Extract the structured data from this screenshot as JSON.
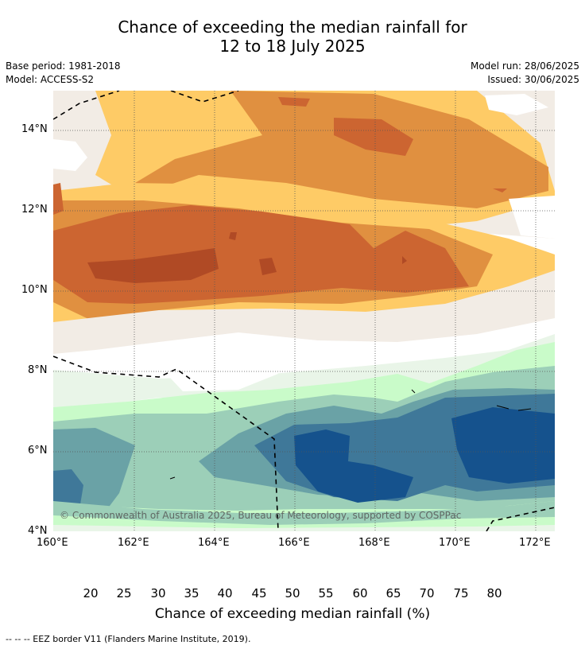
{
  "title_line1": "Chance of exceeding the median rainfall for",
  "title_line2": "12 to 18 July 2025",
  "base_period": "Base period: 1981-2018",
  "model": "Model: ACCESS-S2",
  "model_run": "Model run: 28/06/2025",
  "issued": "Issued: 30/06/2025",
  "copyright": "© Commonwealth of Australia 2025, Bureau of Meteorology, supported by COSPPac",
  "lat_labels": [
    "14°N",
    "12°N",
    "10°N",
    "8°N",
    "6°N",
    "4°N"
  ],
  "lon_labels": [
    "160°E",
    "162°E",
    "164°E",
    "166°E",
    "168°E",
    "170°E",
    "172°E"
  ],
  "colorbar": {
    "ticks": [
      "20",
      "25",
      "30",
      "35",
      "40",
      "45",
      "50",
      "55",
      "60",
      "65",
      "70",
      "75",
      "80"
    ],
    "colors": [
      "#9c3a1f",
      "#b04a25",
      "#cc6531",
      "#e09040",
      "#fecb66",
      "#f2ece5",
      "#ffffff",
      "#ffffff",
      "#e9f5e8",
      "#c9fbc9",
      "#9ccfb8",
      "#6aa2a6",
      "#3f7899",
      "#15528d"
    ],
    "title": "Chance of exceeding median rainfall (%)"
  },
  "footnote": "--  --  -- EEZ border V11 (Flanders Marine Institute, 2019)."
}
